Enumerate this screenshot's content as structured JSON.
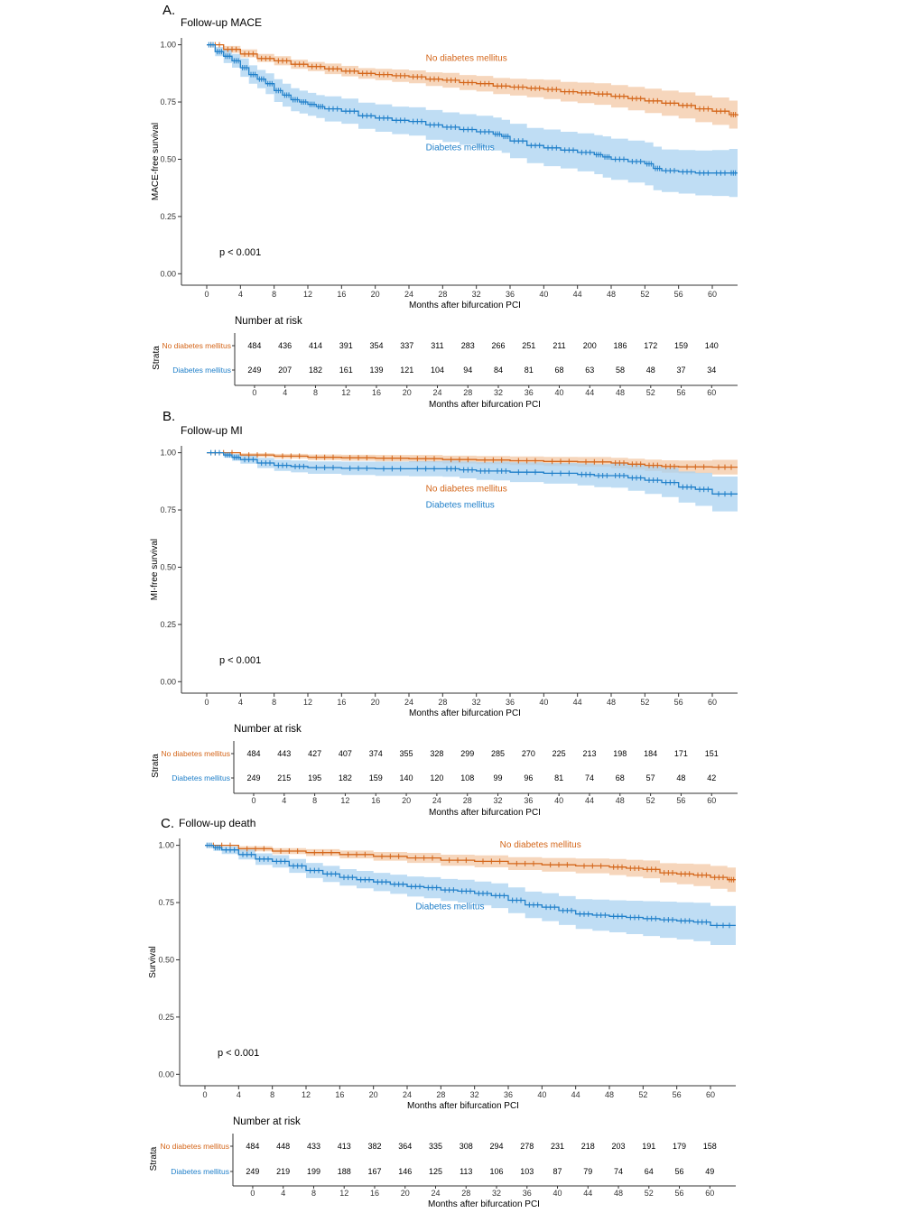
{
  "colors": {
    "no_diabetes": "#d4661a",
    "diabetes": "#1f7fc9",
    "no_diabetes_band": "#f3c8a6",
    "diabetes_band": "#a9d1f0",
    "axis": "#333333"
  },
  "chart_data": [
    {
      "type": "line",
      "panel_label": "A.",
      "title": "Follow-up MACE",
      "xlabel": "Months after bifurcation PCI",
      "ylabel": "MACE-free survival",
      "xlim": [
        -3.0,
        63.0
      ],
      "ylim": [
        -0.05,
        1.03
      ],
      "x_ticks": [
        "0",
        "4",
        "8",
        "12",
        "16",
        "20",
        "24",
        "28",
        "32",
        "36",
        "40",
        "44",
        "48",
        "52",
        "56",
        "60"
      ],
      "y_ticks": [
        "0.00",
        "0.25",
        "0.50",
        "0.75",
        "1.00"
      ],
      "p_value": "p < 0.001",
      "series": [
        {
          "name": "No diabetes mellitus",
          "key": "no_diabetes",
          "x": [
            0,
            2,
            4,
            6,
            8,
            10,
            12,
            14,
            16,
            18,
            20,
            22,
            24,
            26,
            28,
            30,
            32,
            34,
            36,
            38,
            40,
            42,
            44,
            46,
            48,
            50,
            52,
            54,
            56,
            58,
            60,
            62,
            63
          ],
          "y": [
            1.0,
            0.98,
            0.96,
            0.94,
            0.93,
            0.915,
            0.905,
            0.895,
            0.885,
            0.875,
            0.87,
            0.865,
            0.86,
            0.85,
            0.845,
            0.835,
            0.83,
            0.82,
            0.815,
            0.81,
            0.805,
            0.795,
            0.79,
            0.785,
            0.775,
            0.765,
            0.755,
            0.745,
            0.735,
            0.72,
            0.71,
            0.695,
            0.69
          ],
          "lower": [
            1.0,
            0.965,
            0.945,
            0.925,
            0.91,
            0.895,
            0.885,
            0.872,
            0.862,
            0.852,
            0.845,
            0.838,
            0.832,
            0.82,
            0.813,
            0.802,
            0.796,
            0.785,
            0.778,
            0.771,
            0.763,
            0.752,
            0.745,
            0.738,
            0.726,
            0.714,
            0.702,
            0.69,
            0.678,
            0.662,
            0.65,
            0.634,
            0.628
          ],
          "upper": [
            1.0,
            0.995,
            0.98,
            0.96,
            0.95,
            0.935,
            0.925,
            0.918,
            0.908,
            0.898,
            0.895,
            0.892,
            0.888,
            0.88,
            0.877,
            0.868,
            0.864,
            0.855,
            0.852,
            0.849,
            0.847,
            0.838,
            0.835,
            0.832,
            0.824,
            0.816,
            0.808,
            0.8,
            0.792,
            0.778,
            0.77,
            0.756,
            0.752
          ],
          "label": {
            "x": 26,
            "y": 0.93
          }
        },
        {
          "name": "Diabetes mellitus",
          "key": "diabetes",
          "x": [
            0,
            1,
            2,
            3,
            4,
            5,
            6,
            7,
            8,
            9,
            10,
            11,
            12,
            13,
            14,
            16,
            18,
            20,
            22,
            24,
            26,
            28,
            30,
            32,
            34,
            35,
            36,
            38,
            40,
            42,
            44,
            46,
            47,
            48,
            50,
            52,
            53,
            54,
            56,
            58,
            60,
            62,
            63
          ],
          "y": [
            1.0,
            0.97,
            0.95,
            0.93,
            0.9,
            0.87,
            0.85,
            0.83,
            0.8,
            0.78,
            0.76,
            0.75,
            0.74,
            0.73,
            0.72,
            0.71,
            0.69,
            0.68,
            0.67,
            0.665,
            0.65,
            0.64,
            0.63,
            0.62,
            0.61,
            0.6,
            0.58,
            0.56,
            0.55,
            0.54,
            0.53,
            0.52,
            0.51,
            0.5,
            0.49,
            0.48,
            0.46,
            0.45,
            0.445,
            0.44,
            0.44,
            0.44,
            0.44
          ],
          "lower": [
            1.0,
            0.95,
            0.92,
            0.9,
            0.86,
            0.83,
            0.81,
            0.785,
            0.75,
            0.73,
            0.71,
            0.7,
            0.69,
            0.68,
            0.665,
            0.655,
            0.633,
            0.62,
            0.61,
            0.603,
            0.585,
            0.575,
            0.563,
            0.55,
            0.538,
            0.528,
            0.505,
            0.483,
            0.47,
            0.46,
            0.447,
            0.435,
            0.42,
            0.41,
            0.398,
            0.386,
            0.365,
            0.357,
            0.35,
            0.342,
            0.34,
            0.335,
            0.36
          ],
          "upper": [
            1.0,
            0.99,
            0.98,
            0.96,
            0.94,
            0.91,
            0.89,
            0.875,
            0.85,
            0.83,
            0.81,
            0.8,
            0.79,
            0.78,
            0.775,
            0.765,
            0.747,
            0.74,
            0.73,
            0.727,
            0.715,
            0.705,
            0.697,
            0.69,
            0.682,
            0.672,
            0.655,
            0.637,
            0.63,
            0.62,
            0.613,
            0.605,
            0.6,
            0.59,
            0.582,
            0.574,
            0.555,
            0.543,
            0.54,
            0.538,
            0.54,
            0.545,
            0.53
          ],
          "label": {
            "x": 26,
            "y": 0.54
          }
        }
      ],
      "risk_table": {
        "title": "Number at risk",
        "strata_label": "Strata",
        "xlabel": "Months after bifurcation PCI",
        "rows": [
          {
            "name": "No diabetes mellitus",
            "key": "no_diabetes",
            "values": [
              "484",
              "436",
              "414",
              "391",
              "354",
              "337",
              "311",
              "283",
              "266",
              "251",
              "211",
              "200",
              "186",
              "172",
              "159",
              "140"
            ]
          },
          {
            "name": "Diabetes mellitus",
            "key": "diabetes",
            "values": [
              "249",
              "207",
              "182",
              "161",
              "139",
              "121",
              "104",
              "94",
              "84",
              "81",
              "68",
              "63",
              "58",
              "48",
              "37",
              "34"
            ]
          }
        ]
      }
    },
    {
      "type": "line",
      "panel_label": "B.",
      "title": "Follow-up MI",
      "xlabel": "Months after bifurcation PCI",
      "ylabel": "MI-free survival",
      "xlim": [
        -3.0,
        63.0
      ],
      "ylim": [
        -0.05,
        1.03
      ],
      "x_ticks": [
        "0",
        "4",
        "8",
        "12",
        "16",
        "20",
        "24",
        "28",
        "32",
        "36",
        "40",
        "44",
        "48",
        "52",
        "56",
        "60"
      ],
      "y_ticks": [
        "0.00",
        "0.25",
        "0.50",
        "0.75",
        "1.00"
      ],
      "p_value": "p < 0.001",
      "series": [
        {
          "name": "No diabetes mellitus",
          "key": "no_diabetes",
          "x": [
            0,
            4,
            8,
            12,
            16,
            20,
            24,
            28,
            32,
            36,
            40,
            44,
            48,
            50,
            52,
            54,
            56,
            60,
            63
          ],
          "y": [
            1.0,
            0.99,
            0.985,
            0.98,
            0.978,
            0.976,
            0.974,
            0.97,
            0.968,
            0.965,
            0.962,
            0.96,
            0.955,
            0.95,
            0.945,
            0.94,
            0.938,
            0.937,
            0.937
          ],
          "lower": [
            1.0,
            0.982,
            0.975,
            0.968,
            0.965,
            0.962,
            0.958,
            0.953,
            0.95,
            0.946,
            0.942,
            0.939,
            0.932,
            0.926,
            0.92,
            0.913,
            0.91,
            0.905,
            0.903
          ],
          "upper": [
            1.0,
            0.998,
            0.995,
            0.992,
            0.991,
            0.99,
            0.99,
            0.987,
            0.986,
            0.984,
            0.982,
            0.981,
            0.978,
            0.974,
            0.97,
            0.967,
            0.966,
            0.969,
            0.971
          ],
          "label": {
            "x": 26,
            "y": 0.83
          }
        },
        {
          "name": "Diabetes mellitus",
          "key": "diabetes",
          "x": [
            0,
            2,
            3,
            4,
            6,
            8,
            10,
            12,
            16,
            20,
            24,
            28,
            30,
            32,
            34,
            36,
            40,
            44,
            46,
            48,
            50,
            52,
            54,
            56,
            58,
            60,
            63
          ],
          "y": [
            1.0,
            0.99,
            0.98,
            0.97,
            0.955,
            0.945,
            0.94,
            0.935,
            0.932,
            0.93,
            0.93,
            0.93,
            0.925,
            0.92,
            0.92,
            0.915,
            0.91,
            0.905,
            0.9,
            0.9,
            0.89,
            0.88,
            0.87,
            0.85,
            0.84,
            0.82,
            0.82
          ],
          "lower": [
            1.0,
            0.98,
            0.965,
            0.952,
            0.933,
            0.921,
            0.914,
            0.908,
            0.903,
            0.899,
            0.897,
            0.895,
            0.888,
            0.881,
            0.879,
            0.872,
            0.865,
            0.857,
            0.85,
            0.847,
            0.834,
            0.82,
            0.806,
            0.782,
            0.768,
            0.744,
            0.742
          ],
          "upper": [
            1.0,
            0.999,
            0.995,
            0.988,
            0.977,
            0.969,
            0.966,
            0.962,
            0.961,
            0.961,
            0.963,
            0.965,
            0.962,
            0.959,
            0.961,
            0.958,
            0.955,
            0.953,
            0.95,
            0.953,
            0.946,
            0.94,
            0.934,
            0.918,
            0.912,
            0.896,
            0.898
          ],
          "label": {
            "x": 26,
            "y": 0.76
          }
        }
      ],
      "risk_table": {
        "title": "Number at risk",
        "strata_label": "Strata",
        "xlabel": "Months after bifurcation PCI",
        "rows": [
          {
            "name": "No diabetes mellitus",
            "key": "no_diabetes",
            "values": [
              "484",
              "443",
              "427",
              "407",
              "374",
              "355",
              "328",
              "299",
              "285",
              "270",
              "225",
              "213",
              "198",
              "184",
              "171",
              "151"
            ]
          },
          {
            "name": "Diabetes mellitus",
            "key": "diabetes",
            "values": [
              "249",
              "215",
              "195",
              "182",
              "159",
              "140",
              "120",
              "108",
              "99",
              "96",
              "81",
              "74",
              "68",
              "57",
              "48",
              "42"
            ]
          }
        ]
      }
    },
    {
      "type": "line",
      "panel_label": "C.",
      "title": "Follow-up death",
      "xlabel": "Months after bifurcation PCI",
      "ylabel": "Survival",
      "xlim": [
        -3.0,
        63.0
      ],
      "ylim": [
        -0.05,
        1.03
      ],
      "x_ticks": [
        "0",
        "4",
        "8",
        "12",
        "16",
        "20",
        "24",
        "28",
        "32",
        "36",
        "40",
        "44",
        "48",
        "52",
        "56",
        "60"
      ],
      "y_ticks": [
        "0.00",
        "0.25",
        "0.50",
        "0.75",
        "1.00"
      ],
      "p_value": "p < 0.001",
      "series": [
        {
          "name": "No diabetes mellitus",
          "key": "no_diabetes",
          "x": [
            0,
            4,
            8,
            12,
            16,
            20,
            24,
            28,
            32,
            36,
            40,
            44,
            48,
            50,
            52,
            54,
            56,
            58,
            60,
            62,
            63
          ],
          "y": [
            1.0,
            0.985,
            0.975,
            0.968,
            0.96,
            0.952,
            0.945,
            0.935,
            0.93,
            0.92,
            0.915,
            0.91,
            0.905,
            0.9,
            0.895,
            0.88,
            0.875,
            0.87,
            0.86,
            0.85,
            0.85
          ],
          "lower": [
            1.0,
            0.974,
            0.962,
            0.953,
            0.943,
            0.933,
            0.923,
            0.911,
            0.904,
            0.892,
            0.885,
            0.878,
            0.87,
            0.863,
            0.856,
            0.838,
            0.83,
            0.822,
            0.81,
            0.797,
            0.797
          ],
          "upper": [
            1.0,
            0.996,
            0.988,
            0.983,
            0.977,
            0.971,
            0.967,
            0.959,
            0.956,
            0.948,
            0.945,
            0.942,
            0.94,
            0.937,
            0.934,
            0.922,
            0.92,
            0.918,
            0.91,
            0.903,
            0.903
          ],
          "label": {
            "x": 35,
            "y": 0.99
          }
        },
        {
          "name": "Diabetes mellitus",
          "key": "diabetes",
          "x": [
            0,
            1,
            2,
            4,
            6,
            8,
            10,
            12,
            14,
            16,
            18,
            20,
            22,
            24,
            26,
            28,
            30,
            32,
            34,
            36,
            38,
            40,
            42,
            44,
            46,
            48,
            50,
            52,
            54,
            56,
            58,
            60,
            63
          ],
          "y": [
            1.0,
            0.99,
            0.98,
            0.96,
            0.94,
            0.93,
            0.91,
            0.89,
            0.875,
            0.86,
            0.85,
            0.84,
            0.83,
            0.82,
            0.815,
            0.805,
            0.8,
            0.79,
            0.78,
            0.76,
            0.74,
            0.73,
            0.715,
            0.7,
            0.695,
            0.69,
            0.685,
            0.68,
            0.675,
            0.67,
            0.665,
            0.65,
            0.65
          ],
          "lower": [
            1.0,
            0.976,
            0.962,
            0.938,
            0.915,
            0.903,
            0.88,
            0.857,
            0.84,
            0.824,
            0.812,
            0.8,
            0.788,
            0.776,
            0.769,
            0.757,
            0.75,
            0.738,
            0.726,
            0.704,
            0.682,
            0.669,
            0.652,
            0.635,
            0.627,
            0.62,
            0.612,
            0.604,
            0.596,
            0.589,
            0.581,
            0.565,
            0.57
          ],
          "upper": [
            1.0,
            0.999,
            0.995,
            0.982,
            0.965,
            0.957,
            0.94,
            0.923,
            0.91,
            0.896,
            0.888,
            0.88,
            0.872,
            0.864,
            0.861,
            0.853,
            0.85,
            0.842,
            0.834,
            0.816,
            0.798,
            0.791,
            0.778,
            0.765,
            0.763,
            0.76,
            0.758,
            0.756,
            0.754,
            0.751,
            0.749,
            0.735,
            0.74
          ],
          "label": {
            "x": 25,
            "y": 0.72
          }
        }
      ],
      "risk_table": {
        "title": "Number at risk",
        "strata_label": "Strata",
        "xlabel": "Months after bifurcation PCI",
        "rows": [
          {
            "name": "No diabetes mellitus",
            "key": "no_diabetes",
            "values": [
              "484",
              "448",
              "433",
              "413",
              "382",
              "364",
              "335",
              "308",
              "294",
              "278",
              "231",
              "218",
              "203",
              "191",
              "179",
              "158"
            ]
          },
          {
            "name": "Diabetes mellitus",
            "key": "diabetes",
            "values": [
              "249",
              "219",
              "199",
              "188",
              "167",
              "146",
              "125",
              "113",
              "106",
              "103",
              "87",
              "79",
              "74",
              "64",
              "56",
              "49"
            ]
          }
        ]
      }
    }
  ]
}
